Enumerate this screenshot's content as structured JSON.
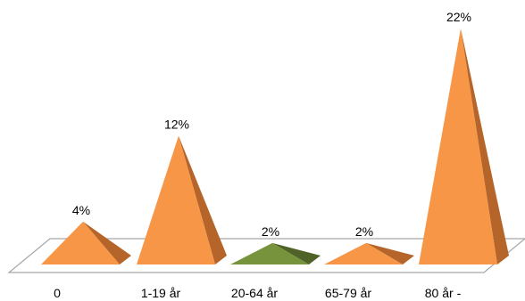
{
  "chart_data": {
    "type": "bar",
    "style": "3d-pyramid",
    "categories": [
      "0",
      "1-19 år",
      "20-64 år",
      "65-79 år",
      "80 år -"
    ],
    "values": [
      4,
      12,
      2,
      2,
      22
    ],
    "data_labels": [
      "4%",
      "12%",
      "2%",
      "2%",
      "22%"
    ],
    "unit": "%",
    "title": "",
    "xlabel": "",
    "ylabel": "",
    "ylim": [
      0,
      22
    ],
    "grid": false,
    "legend": "none",
    "colors": {
      "default_front": "#f79646",
      "default_side": "#b5652a",
      "highlight_front": "#77933c",
      "highlight_side": "#4f6228",
      "floor_stroke": "#a6a6a6"
    },
    "highlight_index": 2
  }
}
